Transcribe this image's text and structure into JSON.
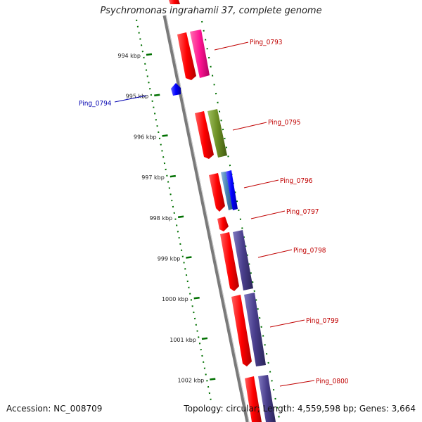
{
  "title": "Psychromonas ingrahamii 37, complete genome",
  "footer": {
    "accession": "Accession: NC_008709",
    "topology": "Topology: circular; Length: 4,559,598 bp; Genes: 3,664"
  },
  "scale_ticks": [
    "994 kbp",
    "995 kbp",
    "996 kbp",
    "997 kbp",
    "998 kbp",
    "999 kbp",
    "1000 kbp",
    "1001 kbp",
    "1002 kbp"
  ],
  "gene_labels": [
    "Ping_0793",
    "Ping_0794",
    "Ping_0795",
    "Ping_0796",
    "Ping_0797",
    "Ping_0798",
    "Ping_0799",
    "Ping_0800"
  ],
  "colors": {
    "cds": "#ff0000",
    "magenta": "#ff1493",
    "olive": "#6b8e23",
    "steelblue": "#4682b4",
    "blue": "#0000ff",
    "purple": "#483d8b",
    "tick": "#007000",
    "backbone": "#808080"
  }
}
